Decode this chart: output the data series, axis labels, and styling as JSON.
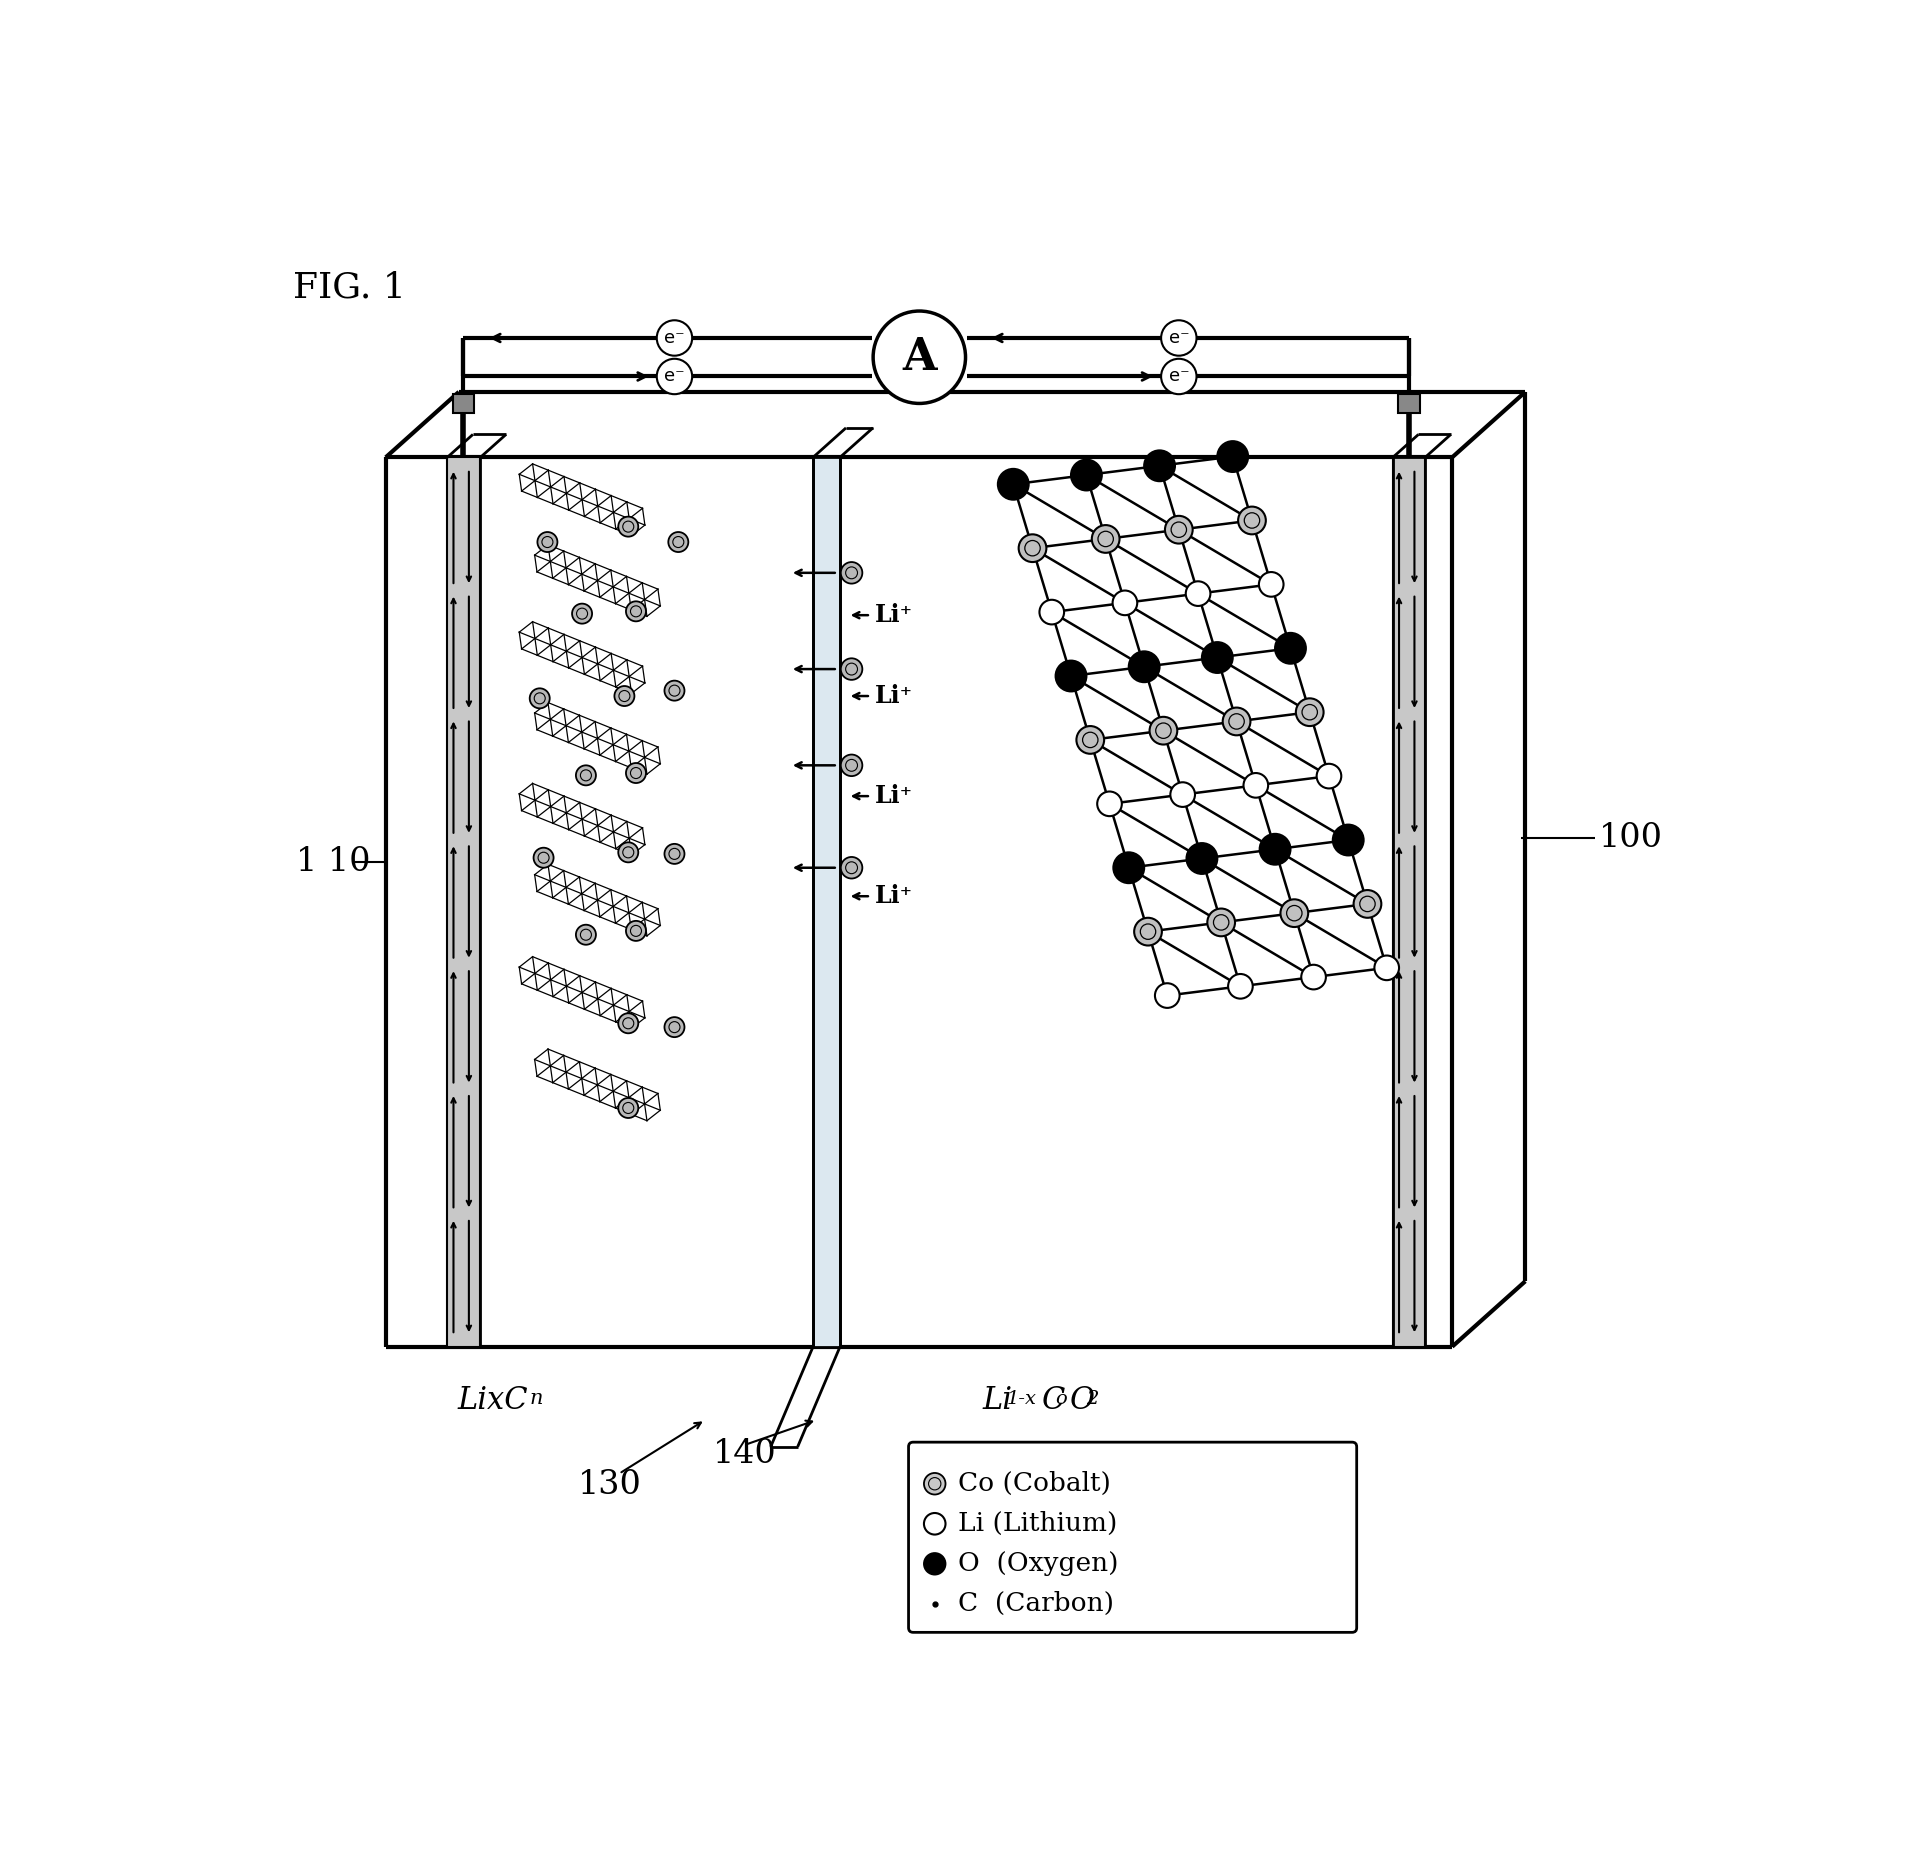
{
  "fig_label": "FIG. 1",
  "background_color": "#ffffff",
  "line_color": "#000000",
  "label_100": "100",
  "label_110": "1 10",
  "label_130": "130",
  "label_140": "140",
  "ammeter_label": "A",
  "legend_co": "Co (Cobalt)",
  "legend_li": "Li (Lithium)",
  "legend_o": "O  (Oxygen)",
  "legend_c": "C  (Carbon)",
  "anode_label_main": "LixC",
  "anode_label_sub": "n",
  "cathode_label": "Li",
  "cathode_sub1": "1-x",
  "cathode_mid": "C",
  "cathode_sub2": "o",
  "cathode_end": "O",
  "cathode_sub3": "2"
}
